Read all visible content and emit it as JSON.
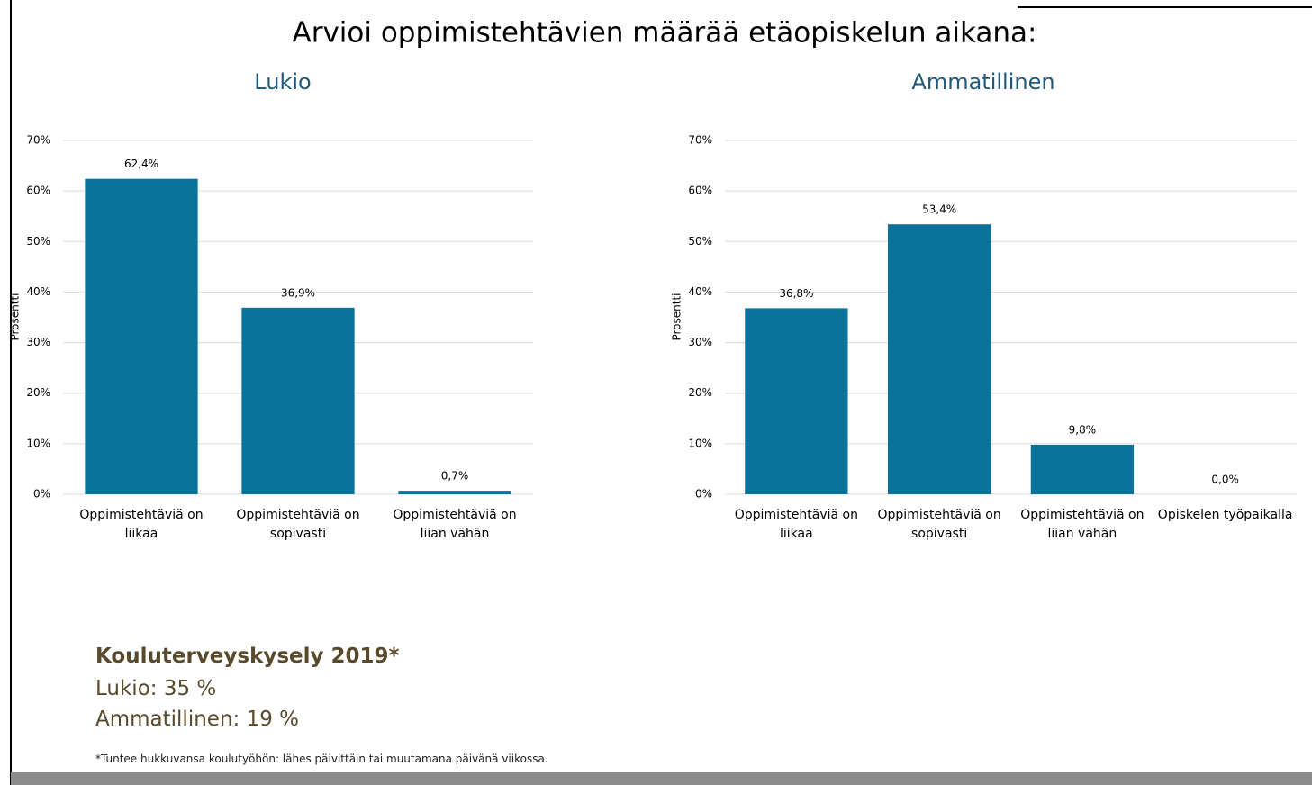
{
  "title": "Arvioi oppimistehtävien määrää etäopiskelun aikana:",
  "chart_data": [
    {
      "type": "bar",
      "title": "Lukio",
      "ylabel": "Prosentti",
      "categories": [
        "Oppimistehtäviä on liikaa",
        "Oppimistehtäviä on sopivasti",
        "Oppimistehtäviä on liian vähän"
      ],
      "values": [
        62.4,
        36.9,
        0.7
      ],
      "value_labels": [
        "62,4%",
        "36,9%",
        "0,7%"
      ],
      "color": "#0a739c",
      "ylim": [
        0,
        70
      ],
      "yticks": [
        {
          "value": 0,
          "label": "0%"
        },
        {
          "value": 10,
          "label": "10%"
        },
        {
          "value": 20,
          "label": "20%"
        },
        {
          "value": 30,
          "label": "30%"
        },
        {
          "value": 40,
          "label": "40%"
        },
        {
          "value": 50,
          "label": "50%"
        },
        {
          "value": 60,
          "label": "60%"
        },
        {
          "value": 70,
          "label": "70%"
        }
      ],
      "grid": true
    },
    {
      "type": "bar",
      "title": "Ammatillinen",
      "ylabel": "Prosentti",
      "categories": [
        "Oppimistehtäviä on liikaa",
        "Oppimistehtäviä on sopivasti",
        "Oppimistehtäviä on liian vähän",
        "Opiskelen työpaikalla"
      ],
      "values": [
        36.8,
        53.4,
        9.8,
        0.0
      ],
      "value_labels": [
        "36,8%",
        "53,4%",
        "9,8%",
        "0,0%"
      ],
      "color": "#0a739c",
      "ylim": [
        0,
        70
      ],
      "yticks": [
        {
          "value": 0,
          "label": "0%"
        },
        {
          "value": 10,
          "label": "10%"
        },
        {
          "value": 20,
          "label": "20%"
        },
        {
          "value": 30,
          "label": "30%"
        },
        {
          "value": 40,
          "label": "40%"
        },
        {
          "value": 50,
          "label": "50%"
        },
        {
          "value": 60,
          "label": "60%"
        },
        {
          "value": 70,
          "label": "70%"
        }
      ],
      "grid": true
    }
  ],
  "notes": {
    "heading": "Kouluterveyskysely 2019*",
    "lines": [
      "Lukio: 35 %",
      "Ammatillinen: 19 %"
    ],
    "footnote": "*Tuntee hukkuvansa koulutyöhön: lähes päivittäin tai muutamana päivänä viikossa."
  }
}
